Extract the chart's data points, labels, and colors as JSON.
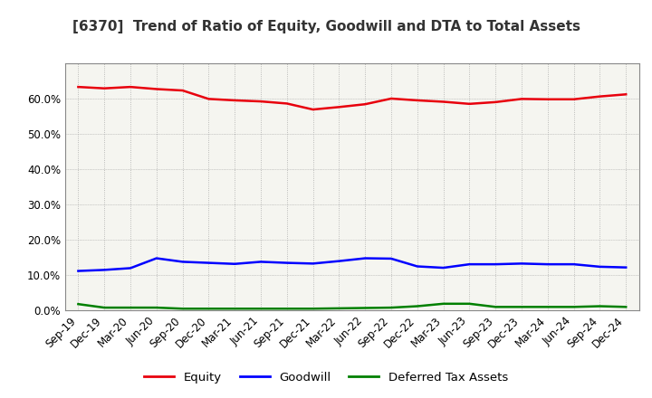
{
  "title": "[6370]  Trend of Ratio of Equity, Goodwill and DTA to Total Assets",
  "x_labels": [
    "Sep-19",
    "Dec-19",
    "Mar-20",
    "Jun-20",
    "Sep-20",
    "Dec-20",
    "Mar-21",
    "Jun-21",
    "Sep-21",
    "Dec-21",
    "Mar-22",
    "Jun-22",
    "Sep-22",
    "Dec-22",
    "Mar-23",
    "Jun-23",
    "Sep-23",
    "Dec-23",
    "Mar-24",
    "Jun-24",
    "Sep-24",
    "Dec-24"
  ],
  "equity": [
    0.634,
    0.63,
    0.634,
    0.628,
    0.624,
    0.6,
    0.596,
    0.593,
    0.587,
    0.57,
    0.577,
    0.585,
    0.601,
    0.596,
    0.592,
    0.586,
    0.591,
    0.6,
    0.599,
    0.599,
    0.607,
    0.613
  ],
  "goodwill": [
    0.112,
    0.115,
    0.12,
    0.148,
    0.138,
    0.135,
    0.132,
    0.138,
    0.135,
    0.133,
    0.14,
    0.148,
    0.147,
    0.125,
    0.121,
    0.131,
    0.131,
    0.133,
    0.131,
    0.131,
    0.124,
    0.122
  ],
  "dta": [
    0.018,
    0.008,
    0.008,
    0.008,
    0.005,
    0.005,
    0.005,
    0.005,
    0.005,
    0.005,
    0.006,
    0.007,
    0.008,
    0.012,
    0.019,
    0.019,
    0.01,
    0.01,
    0.01,
    0.01,
    0.012,
    0.01
  ],
  "equity_color": "#e8000d",
  "goodwill_color": "#0000ff",
  "dta_color": "#008000",
  "ylim": [
    0.0,
    0.7
  ],
  "yticks": [
    0.0,
    0.1,
    0.2,
    0.3,
    0.4,
    0.5,
    0.6
  ],
  "line_width": 1.8,
  "legend_labels": [
    "Equity",
    "Goodwill",
    "Deferred Tax Assets"
  ],
  "bg_color": "#ffffff",
  "plot_bg_color": "#f5f5f0",
  "grid_color": "#999999",
  "title_color": "#333333",
  "title_fontsize": 11,
  "axis_fontsize": 8.5,
  "legend_fontsize": 9.5
}
